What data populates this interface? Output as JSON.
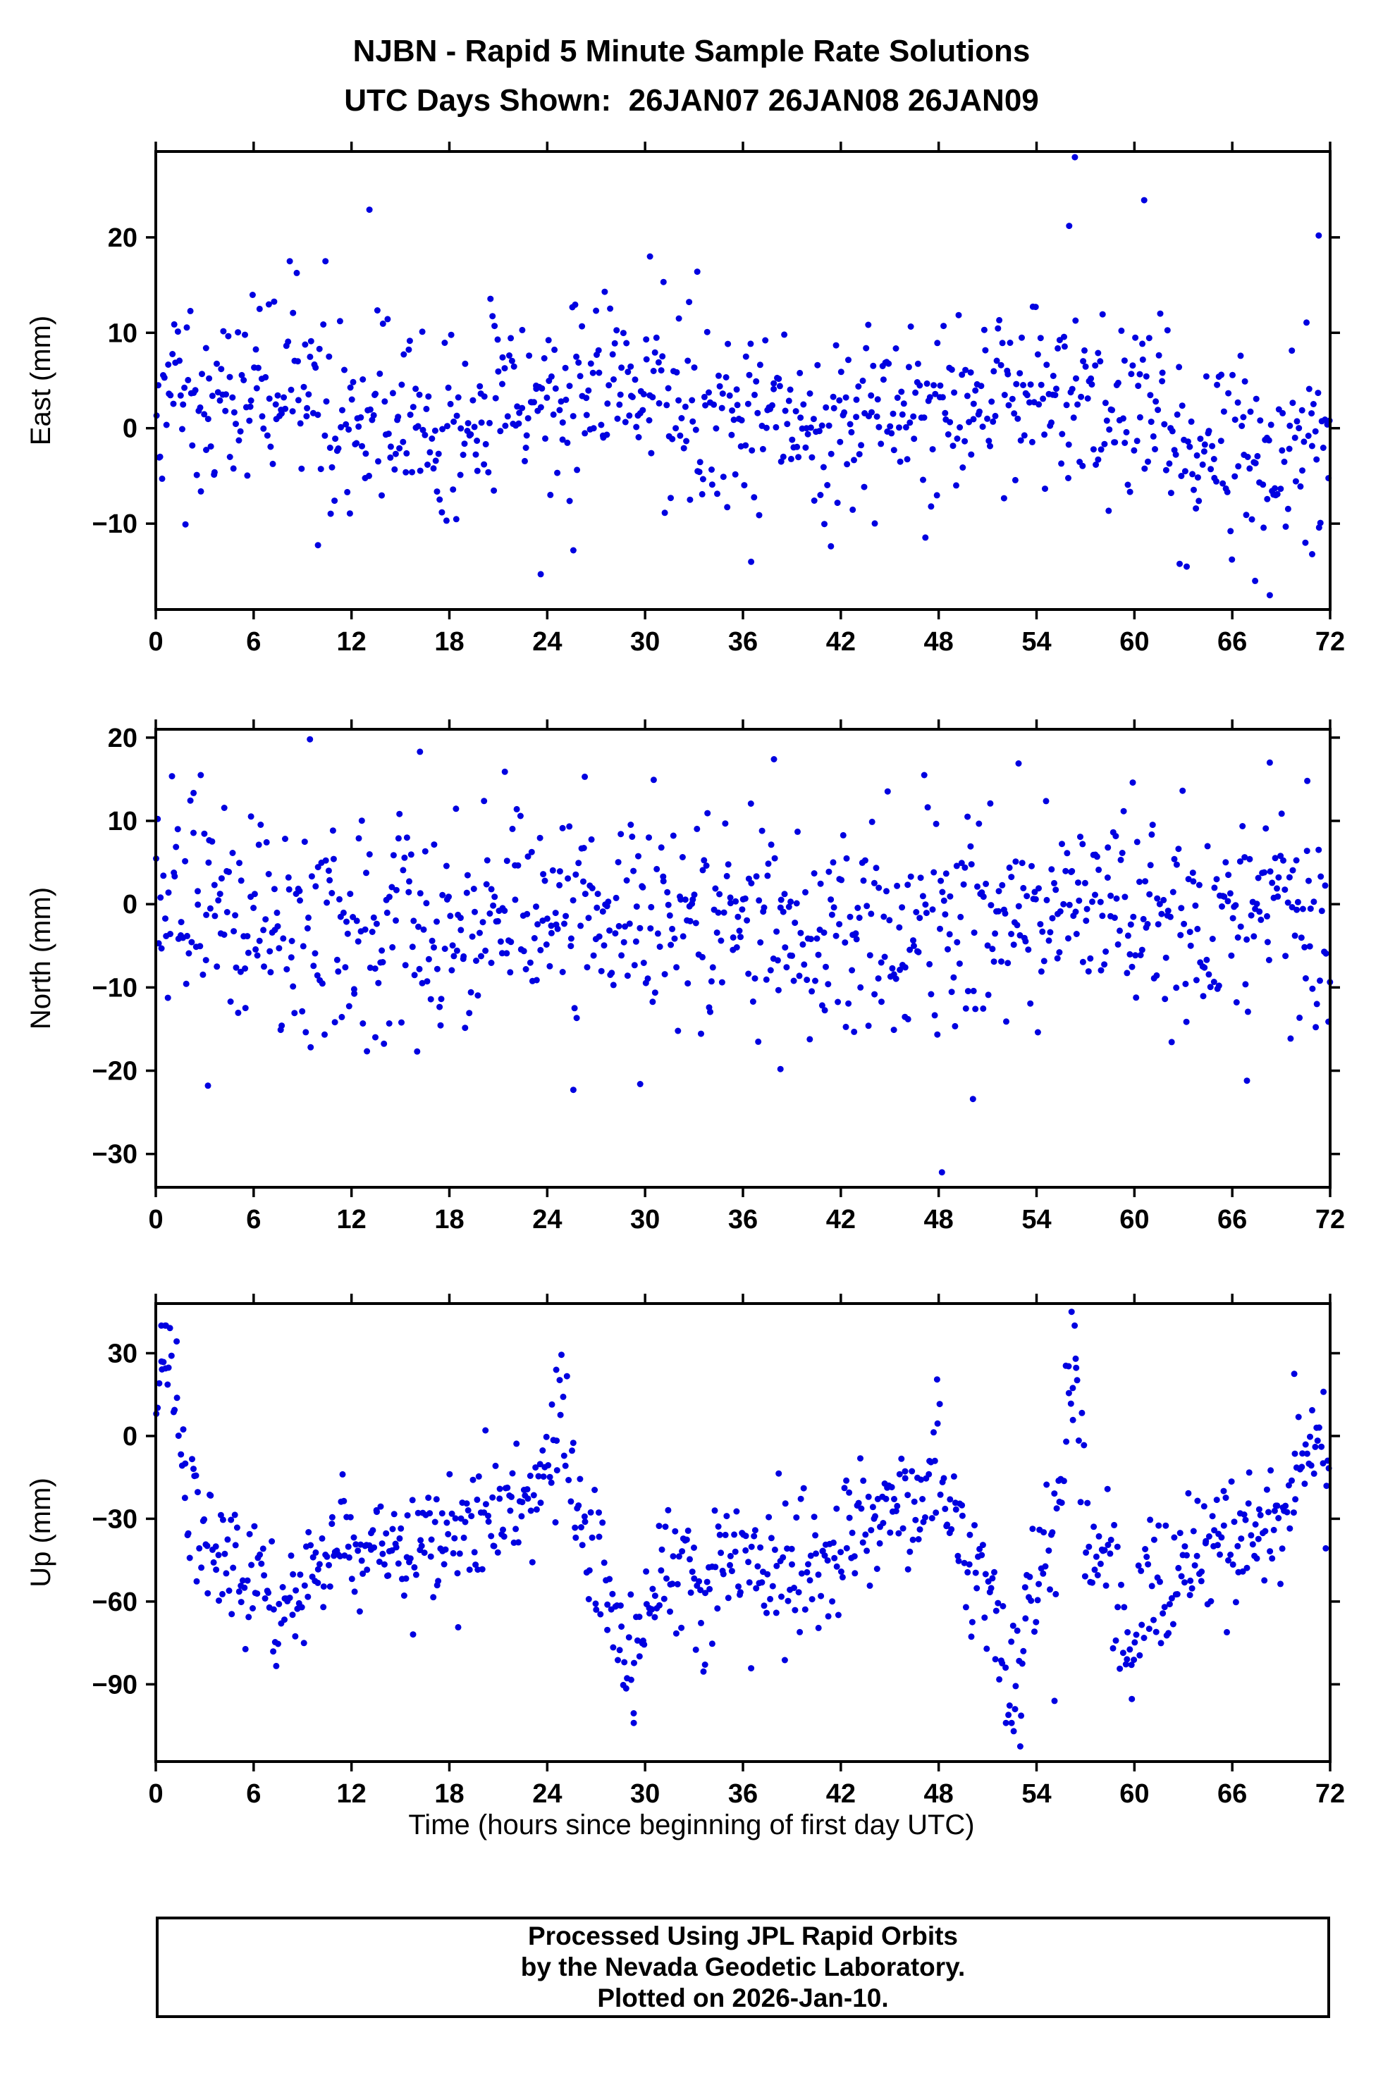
{
  "title": {
    "line1": "NJBN - Rapid 5 Minute Sample Rate Solutions",
    "line2": "UTC Days Shown:  26JAN07 26JAN08 26JAN09"
  },
  "xlabel": "Time (hours since beginning of first day UTC)",
  "footer": {
    "lines": [
      "Processed Using JPL Rapid Orbits",
      "by the Nevada Geodetic Laboratory.",
      "Plotted on 2026-Jan-10."
    ]
  },
  "marker": {
    "color": "#0000e0",
    "radius": 4.5,
    "shape": "circle"
  },
  "axis_color": "#000000",
  "background_color": "#ffffff",
  "chart_data": [
    {
      "id": "east",
      "type": "scatter",
      "ylabel": "East (mm)",
      "x_range": [
        0,
        72
      ],
      "x_ticks": [
        0,
        6,
        12,
        18,
        24,
        30,
        36,
        42,
        48,
        54,
        60,
        66,
        72
      ],
      "y_range": [
        -19,
        29
      ],
      "y_ticks": [
        -10,
        0,
        10,
        20
      ],
      "n_points": 840,
      "seed": 20107,
      "y_mean": 1.6,
      "y_sd": 4.9,
      "y_clip": [
        -14.5,
        17.5
      ],
      "wander": [
        {
          "a": 1.6,
          "p": 24,
          "phi": 0.8
        },
        {
          "a": 1.2,
          "p": 7.5,
          "phi": 2.1
        }
      ],
      "events": [
        {
          "xc": 68,
          "w": 3,
          "dy": -5
        },
        {
          "xc": 56,
          "w": 2,
          "dy": 3
        },
        {
          "xc": 9,
          "w": 2.5,
          "dy": 3
        }
      ],
      "outliers": [
        [
          13.1,
          22.9
        ],
        [
          56.35,
          28.4
        ],
        [
          60.6,
          23.9
        ],
        [
          71.3,
          20.2
        ],
        [
          56.0,
          21.2
        ],
        [
          30.3,
          18.0
        ],
        [
          33.2,
          16.4
        ],
        [
          23.6,
          -15.3
        ],
        [
          67.4,
          -16.0
        ],
        [
          68.3,
          -17.5
        ],
        [
          70.9,
          -13.2
        ],
        [
          25.6,
          -12.8
        ],
        [
          36.5,
          -14.0
        ]
      ]
    },
    {
      "id": "north",
      "type": "scatter",
      "ylabel": "North (mm)",
      "x_range": [
        0,
        72
      ],
      "x_ticks": [
        0,
        6,
        12,
        18,
        24,
        30,
        36,
        42,
        48,
        54,
        60,
        66,
        72
      ],
      "y_range": [
        -34,
        21
      ],
      "y_ticks": [
        -30,
        -20,
        -10,
        0,
        10,
        20
      ],
      "n_points": 840,
      "seed": 30211,
      "y_mean": -1.8,
      "y_sd": 6.3,
      "y_clip": [
        -19.5,
        15.5
      ],
      "wander": [
        {
          "a": 1.4,
          "p": 30,
          "phi": 1.7
        },
        {
          "a": 1.0,
          "p": 11,
          "phi": 0.3
        }
      ],
      "events": [],
      "outliers": [
        [
          48.2,
          -32.2
        ],
        [
          50.1,
          -23.4
        ],
        [
          25.6,
          -22.3
        ],
        [
          29.7,
          -21.6
        ],
        [
          3.2,
          -21.8
        ],
        [
          66.9,
          -21.2
        ],
        [
          38.3,
          -19.8
        ],
        [
          9.45,
          19.8
        ],
        [
          16.2,
          18.3
        ],
        [
          37.9,
          17.4
        ],
        [
          52.9,
          16.9
        ],
        [
          68.3,
          17.0
        ],
        [
          21.4,
          15.9
        ],
        [
          70.6,
          14.8
        ],
        [
          26.3,
          15.3
        ],
        [
          59.9,
          14.6
        ]
      ]
    },
    {
      "id": "up",
      "type": "scatter",
      "ylabel": "Up (mm)",
      "x_range": [
        0,
        72
      ],
      "x_ticks": [
        0,
        6,
        12,
        18,
        24,
        30,
        36,
        42,
        48,
        54,
        60,
        66,
        72
      ],
      "y_range": [
        -118,
        48
      ],
      "y_ticks": [
        -90,
        -60,
        -30,
        0,
        30
      ],
      "n_points": 840,
      "seed": 40319,
      "y_mean": -38,
      "y_sd": 12,
      "y_clip": [
        -104,
        40
      ],
      "wander": [
        {
          "a": 7,
          "p": 26,
          "phi": 2.6
        },
        {
          "a": 5,
          "p": 11,
          "phi": 1.1
        }
      ],
      "events": [
        {
          "xc": 0.6,
          "w": 1.1,
          "dy": 52
        },
        {
          "xc": 24.6,
          "w": 1.0,
          "dy": 30
        },
        {
          "xc": 29.2,
          "w": 1.2,
          "dy": -40
        },
        {
          "xc": 33.6,
          "w": 0.9,
          "dy": -22
        },
        {
          "xc": 47.9,
          "w": 0.7,
          "dy": 26
        },
        {
          "xc": 52.4,
          "w": 1.5,
          "dy": -48
        },
        {
          "xc": 56.2,
          "w": 0.5,
          "dy": 70
        },
        {
          "xc": 59.9,
          "w": 0.8,
          "dy": -26
        },
        {
          "xc": 70.8,
          "w": 1.2,
          "dy": 34
        },
        {
          "xc": 7.8,
          "w": 1.4,
          "dy": -14
        }
      ],
      "outliers": [
        [
          56.15,
          45.0
        ],
        [
          53.0,
          -112.5
        ],
        [
          52.6,
          -107.0
        ],
        [
          29.3,
          -100.5
        ],
        [
          55.1,
          -96.0
        ],
        [
          0.35,
          27.0
        ],
        [
          0.6,
          24.5
        ],
        [
          24.55,
          24.0
        ],
        [
          56.4,
          28.0
        ],
        [
          69.8,
          22.5
        ],
        [
          47.9,
          20.5
        ]
      ]
    }
  ]
}
